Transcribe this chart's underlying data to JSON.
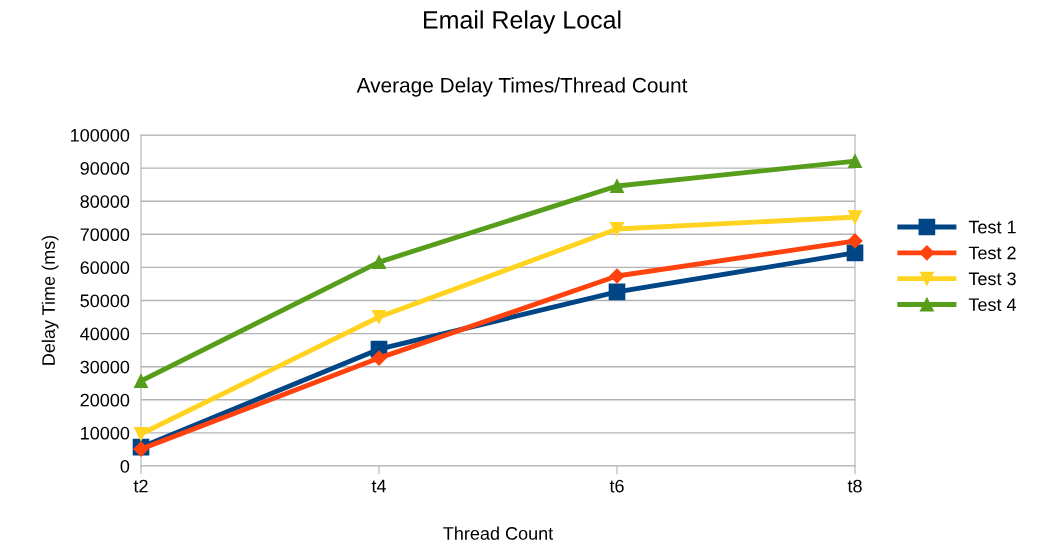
{
  "chart_data": {
    "type": "line",
    "title": "Email Relay Local",
    "subtitle": "Average Delay Times/Thread Count",
    "xlabel": "Thread Count",
    "ylabel": "Delay Time (ms)",
    "categories": [
      "t2",
      "t4",
      "t6",
      "t8"
    ],
    "series": [
      {
        "name": "Test 1",
        "color": "#004586",
        "marker": "square",
        "values": [
          5700,
          35300,
          52600,
          64400
        ]
      },
      {
        "name": "Test 2",
        "color": "#ff420e",
        "marker": "diamond",
        "values": [
          5100,
          32600,
          57400,
          68000
        ]
      },
      {
        "name": "Test 3",
        "color": "#ffd320",
        "marker": "triangle_down",
        "values": [
          9700,
          45000,
          71600,
          75200
        ]
      },
      {
        "name": "Test 4",
        "color": "#579d1c",
        "marker": "triangle",
        "values": [
          25700,
          61600,
          84600,
          92100
        ]
      }
    ],
    "ylim": [
      0,
      100000
    ],
    "yticks": [
      0,
      10000,
      20000,
      30000,
      40000,
      50000,
      60000,
      70000,
      80000,
      90000,
      100000
    ],
    "grid": "y",
    "legend": "right",
    "line_style": "solid"
  }
}
